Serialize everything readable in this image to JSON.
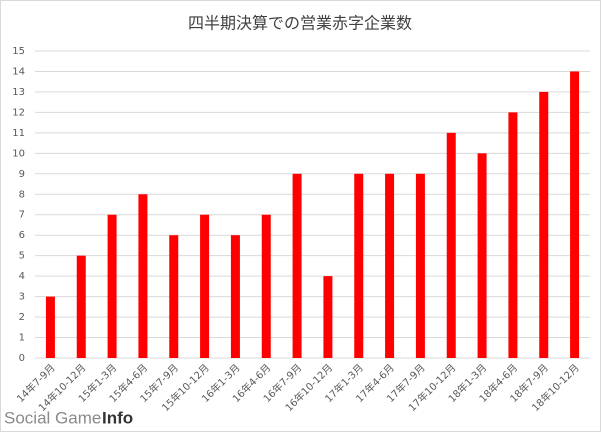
{
  "chart_data": {
    "type": "bar",
    "title": "四半期決算での営業赤字企業数",
    "categories": [
      "14年7-9月",
      "14年10-12月",
      "15年1-3月",
      "15年4-6月",
      "15年7-9月",
      "15年10-12月",
      "16年1-3月",
      "16年4-6月",
      "16年7-9月",
      "16年10-12月",
      "17年1-3月",
      "17年4-6月",
      "17年7-9月",
      "17年10-12月",
      "18年1-3月",
      "18年4-6月",
      "18年7-9月",
      "18年10-12月"
    ],
    "values": [
      3,
      5,
      7,
      8,
      6,
      7,
      6,
      7,
      9,
      4,
      9,
      9,
      9,
      11,
      10,
      12,
      13,
      14
    ],
    "color": "#ff0000",
    "ylim": [
      0,
      15
    ],
    "yticks": [
      0,
      1,
      2,
      3,
      4,
      5,
      6,
      7,
      8,
      9,
      10,
      11,
      12,
      13,
      14,
      15
    ],
    "grid": true
  },
  "watermark": {
    "brand": "Social Game",
    "suffix": "Info"
  }
}
